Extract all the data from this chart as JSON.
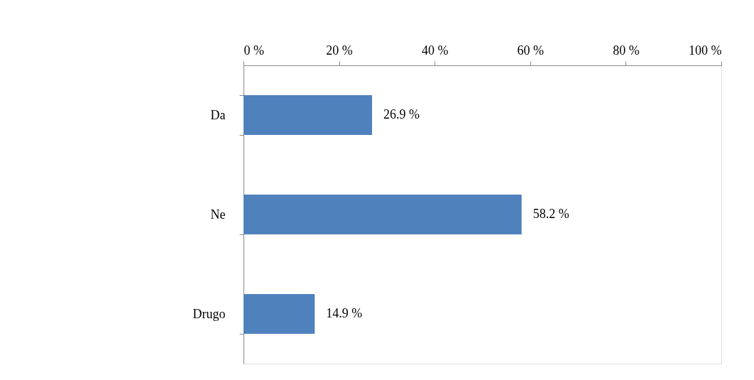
{
  "chart_data": {
    "type": "bar",
    "orientation": "horizontal",
    "categories": [
      "Da",
      "Ne",
      "Drugo"
    ],
    "values": [
      26.9,
      58.2,
      14.9
    ],
    "color": "#4f81bd",
    "value_labels": [
      "26.9 %",
      "58.2 %",
      "14.9 %"
    ],
    "xlim": [
      0,
      100
    ],
    "xticks": [
      {
        "value": 0,
        "label": "0 %"
      },
      {
        "value": 20,
        "label": "20 %"
      },
      {
        "value": 40,
        "label": "40 %"
      },
      {
        "value": 60,
        "label": "60 %"
      },
      {
        "value": 80,
        "label": "80 %"
      },
      {
        "value": 100,
        "label": "100 %"
      }
    ],
    "grid": false
  }
}
